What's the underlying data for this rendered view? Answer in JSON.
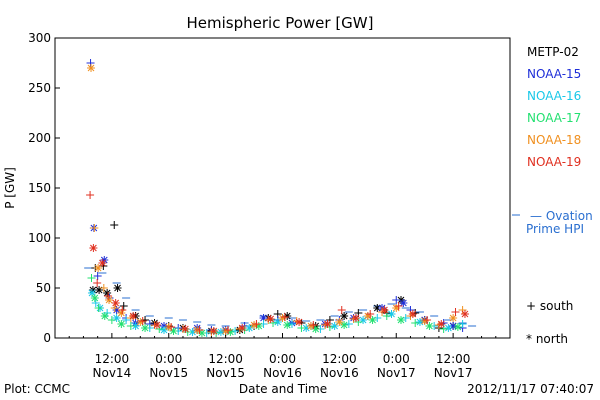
{
  "chart_data": {
    "type": "scatter",
    "title": "Hemispheric Power [GW]",
    "ylabel": "P [GW]",
    "xlabel": "Date and Time",
    "ylim": [
      0,
      300
    ],
    "yticks": [
      0,
      50,
      100,
      150,
      200,
      250,
      300
    ],
    "xlim_hours": [
      0,
      96
    ],
    "x_ticks": [
      {
        "hour": 12,
        "line1": "12:00",
        "line2": "Nov14"
      },
      {
        "hour": 24,
        "line1": "0:00",
        "line2": "Nov15"
      },
      {
        "hour": 36,
        "line1": "12:00",
        "line2": "Nov15"
      },
      {
        "hour": 48,
        "line1": "0:00",
        "line2": "Nov16"
      },
      {
        "hour": 60,
        "line1": "12:00",
        "line2": "Nov16"
      },
      {
        "hour": 72,
        "line1": "0:00",
        "line2": "Nov17"
      },
      {
        "hour": 84,
        "line1": "12:00",
        "line2": "Nov17"
      }
    ],
    "legend": [
      {
        "name": "METP-02",
        "color": "#000000"
      },
      {
        "name": "NOAA-15",
        "color": "#1f2fd8"
      },
      {
        "name": "NOAA-16",
        "color": "#19c8e8"
      },
      {
        "name": "NOAA-17",
        "color": "#22e070"
      },
      {
        "name": "NOAA-18",
        "color": "#f09020"
      },
      {
        "name": "NOAA-19",
        "color": "#e03020"
      }
    ],
    "ovation_label_line1": "— Ovation",
    "ovation_label_line2": "Prime HPI",
    "ovation_color": "#2a6fd0",
    "marker_south": "+ south",
    "marker_north": "* north",
    "series": [
      {
        "name": "METP-02",
        "color": "#000000",
        "points": [
          [
            8.0,
            48
          ],
          [
            8.5,
            70
          ],
          [
            9.3,
            48
          ],
          [
            10.2,
            72
          ],
          [
            11,
            45
          ],
          [
            12.5,
            113
          ],
          [
            13.2,
            50
          ],
          [
            14.5,
            32
          ],
          [
            17,
            22
          ],
          [
            19,
            18
          ],
          [
            21,
            15
          ],
          [
            24,
            12
          ],
          [
            27,
            10
          ],
          [
            30,
            8
          ],
          [
            33,
            7
          ],
          [
            36,
            6
          ],
          [
            39,
            8
          ],
          [
            42,
            12
          ],
          [
            45,
            20
          ],
          [
            47,
            24
          ],
          [
            49,
            22
          ],
          [
            52,
            15
          ],
          [
            55,
            12
          ],
          [
            58,
            18
          ],
          [
            61,
            22
          ],
          [
            64,
            25
          ],
          [
            68,
            30
          ],
          [
            70,
            25
          ],
          [
            73,
            38
          ],
          [
            76,
            25
          ],
          [
            78,
            18
          ],
          [
            81,
            10
          ],
          [
            84,
            12
          ]
        ]
      },
      {
        "name": "NOAA-15",
        "color": "#1f2fd8",
        "points": [
          [
            7.5,
            275
          ],
          [
            8.2,
            110
          ],
          [
            9,
            62
          ],
          [
            10.4,
            78
          ],
          [
            11.5,
            40
          ],
          [
            13,
            28
          ],
          [
            15,
            20
          ],
          [
            17,
            15
          ],
          [
            20,
            14
          ],
          [
            23,
            12
          ],
          [
            26,
            10
          ],
          [
            30,
            10
          ],
          [
            33,
            8
          ],
          [
            36,
            8
          ],
          [
            40,
            12
          ],
          [
            44,
            20
          ],
          [
            47,
            18
          ],
          [
            50,
            15
          ],
          [
            54,
            12
          ],
          [
            57,
            14
          ],
          [
            60,
            18
          ],
          [
            63,
            20
          ],
          [
            66,
            22
          ],
          [
            69,
            30
          ],
          [
            72,
            38
          ],
          [
            73.5,
            35
          ],
          [
            75,
            28
          ],
          [
            78,
            18
          ],
          [
            82,
            15
          ],
          [
            84,
            12
          ],
          [
            86,
            10
          ]
        ]
      },
      {
        "name": "NOAA-16",
        "color": "#19c8e8",
        "points": [
          [
            7.8,
            45
          ],
          [
            8.6,
            35
          ],
          [
            9.5,
            30
          ],
          [
            11,
            25
          ],
          [
            13,
            20
          ],
          [
            15,
            18
          ],
          [
            17,
            12
          ],
          [
            20,
            10
          ],
          [
            23,
            8
          ],
          [
            26,
            7
          ],
          [
            29,
            6
          ],
          [
            32,
            5
          ],
          [
            35,
            6
          ],
          [
            38,
            7
          ],
          [
            41,
            10
          ],
          [
            44,
            14
          ],
          [
            47,
            16
          ],
          [
            50,
            14
          ],
          [
            53,
            10
          ],
          [
            56,
            9
          ],
          [
            59,
            12
          ],
          [
            62,
            14
          ],
          [
            65,
            18
          ],
          [
            68,
            20
          ],
          [
            71,
            24
          ],
          [
            74,
            20
          ],
          [
            77,
            16
          ],
          [
            80,
            12
          ],
          [
            83,
            10
          ],
          [
            86,
            14
          ]
        ]
      },
      {
        "name": "NOAA-17",
        "color": "#22e070",
        "points": [
          [
            7.7,
            60
          ],
          [
            8.4,
            40
          ],
          [
            9.2,
            30
          ],
          [
            10.5,
            22
          ],
          [
            12,
            18
          ],
          [
            14,
            14
          ],
          [
            16,
            12
          ],
          [
            19,
            10
          ],
          [
            22,
            9
          ],
          [
            25,
            7
          ],
          [
            28,
            6
          ],
          [
            31,
            5
          ],
          [
            34,
            5
          ],
          [
            37,
            6
          ],
          [
            40,
            8
          ],
          [
            43,
            12
          ],
          [
            46,
            15
          ],
          [
            49,
            13
          ],
          [
            52,
            10
          ],
          [
            55,
            9
          ],
          [
            58,
            11
          ],
          [
            61,
            13
          ],
          [
            64,
            16
          ],
          [
            67,
            18
          ],
          [
            70,
            22
          ],
          [
            73,
            18
          ],
          [
            76,
            15
          ],
          [
            79,
            12
          ],
          [
            82,
            9
          ],
          [
            85,
            11
          ]
        ]
      },
      {
        "name": "NOAA-18",
        "color": "#f09020",
        "points": [
          [
            7.6,
            270
          ],
          [
            8.3,
            110
          ],
          [
            9.1,
            70
          ],
          [
            10.3,
            50
          ],
          [
            11.4,
            38
          ],
          [
            12.6,
            30
          ],
          [
            14,
            25
          ],
          [
            16,
            20
          ],
          [
            18,
            16
          ],
          [
            21,
            13
          ],
          [
            24,
            11
          ],
          [
            27,
            9
          ],
          [
            30,
            8
          ],
          [
            33,
            6
          ],
          [
            36,
            7
          ],
          [
            39,
            9
          ],
          [
            42,
            13
          ],
          [
            45,
            18
          ],
          [
            48,
            20
          ],
          [
            51,
            17
          ],
          [
            54,
            12
          ],
          [
            57,
            13
          ],
          [
            60,
            16
          ],
          [
            63,
            19
          ],
          [
            66,
            22
          ],
          [
            69,
            26
          ],
          [
            72,
            30
          ],
          [
            75,
            22
          ],
          [
            78,
            17
          ],
          [
            81,
            13
          ],
          [
            84,
            20
          ],
          [
            86,
            28
          ]
        ]
      },
      {
        "name": "NOAA-19",
        "color": "#e03020",
        "points": [
          [
            7.4,
            143
          ],
          [
            8.1,
            90
          ],
          [
            8.9,
            55
          ],
          [
            10.0,
            75
          ],
          [
            11.2,
            42
          ],
          [
            12.8,
            35
          ],
          [
            14.2,
            28
          ],
          [
            16.5,
            22
          ],
          [
            18.5,
            17
          ],
          [
            21.5,
            13
          ],
          [
            24.5,
            11
          ],
          [
            27.5,
            9
          ],
          [
            30.5,
            8
          ],
          [
            33.5,
            7
          ],
          [
            36.5,
            8
          ],
          [
            39.5,
            10
          ],
          [
            42.5,
            14
          ],
          [
            45.5,
            19
          ],
          [
            48.5,
            21
          ],
          [
            51.5,
            16
          ],
          [
            54.5,
            13
          ],
          [
            57.5,
            14
          ],
          [
            60.5,
            28
          ],
          [
            63.5,
            20
          ],
          [
            66.5,
            24
          ],
          [
            69.5,
            28
          ],
          [
            72.5,
            32
          ],
          [
            75.5,
            24
          ],
          [
            78.5,
            18
          ],
          [
            81.5,
            14
          ],
          [
            84.5,
            26
          ],
          [
            86.5,
            24
          ]
        ]
      }
    ],
    "ovation_dashes": [
      [
        7,
        70
      ],
      [
        10,
        65
      ],
      [
        13,
        55
      ],
      [
        15,
        40
      ],
      [
        17,
        28
      ],
      [
        20,
        22
      ],
      [
        24,
        20
      ],
      [
        27,
        18
      ],
      [
        30,
        16
      ],
      [
        33,
        13
      ],
      [
        36,
        12
      ],
      [
        40,
        15
      ],
      [
        44,
        22
      ],
      [
        47,
        24
      ],
      [
        50,
        20
      ],
      [
        53,
        17
      ],
      [
        56,
        18
      ],
      [
        59,
        22
      ],
      [
        62,
        26
      ],
      [
        65,
        28
      ],
      [
        68,
        32
      ],
      [
        71,
        34
      ],
      [
        74,
        30
      ],
      [
        77,
        26
      ],
      [
        80,
        22
      ],
      [
        83,
        18
      ],
      [
        86,
        15
      ],
      [
        88,
        12
      ]
    ]
  },
  "footer": {
    "left": "Plot: CCMC",
    "right": "2012/11/17 07:40:07"
  }
}
